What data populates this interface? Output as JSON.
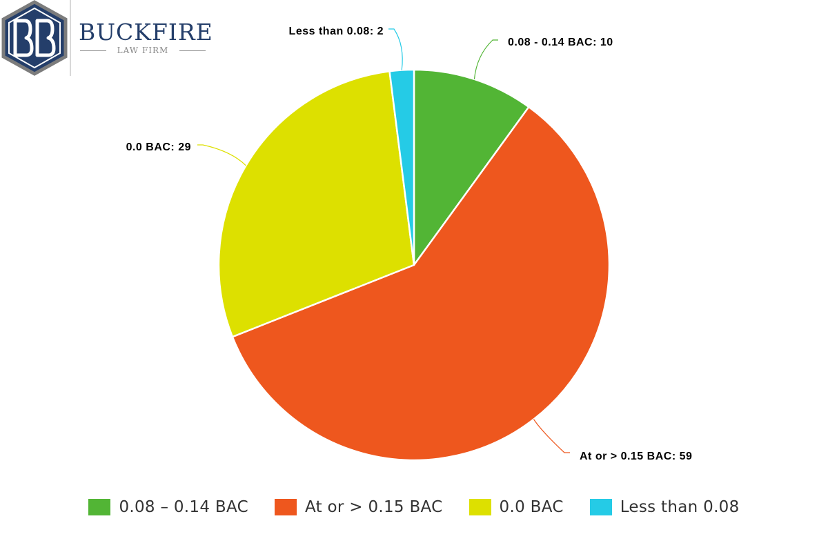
{
  "logo": {
    "name": "BUCKFIRE",
    "subtitle": "LAW FIRM",
    "emblem": "bb-hexagon-logo",
    "color_primary": "#243e6a",
    "color_frame": "#7c7c7c"
  },
  "chart_data": {
    "type": "pie",
    "start_angle_deg": 0,
    "direction": "clockwise",
    "categories": [
      "0.08 - 0.14 BAC",
      "At or > 0.15 BAC",
      "0.0 BAC",
      "Less than 0.08"
    ],
    "values": [
      10,
      59,
      29,
      2
    ],
    "colors": [
      "#52b535",
      "#ee571e",
      "#dde000",
      "#25cbe6"
    ],
    "data_labels": [
      "0.08 - 0.14 BAC: 10",
      "At or > 0.15 BAC: 59",
      "0.0 BAC: 29",
      "Less than 0.08: 2"
    ],
    "legend": {
      "position": "bottom",
      "entries": [
        "0.08 – 0.14 BAC",
        "At or > 0.15 BAC",
        "0.0 BAC",
        "Less than 0.08"
      ]
    }
  }
}
